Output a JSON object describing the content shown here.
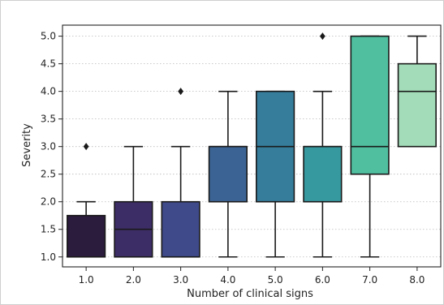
{
  "chart_data": {
    "type": "boxplot",
    "xlabel": "Number of clinical signs",
    "ylabel": "Severity",
    "categories": [
      "1.0",
      "2.0",
      "3.0",
      "4.0",
      "5.0",
      "6.0",
      "7.0",
      "8.0"
    ],
    "yticks": [
      "1.0",
      "1.5",
      "2.0",
      "2.5",
      "3.0",
      "3.5",
      "4.0",
      "4.5",
      "5.0"
    ],
    "ylim": [
      0.82,
      5.2
    ],
    "grid": "horizontal dotted",
    "boxes": [
      {
        "category": "1.0",
        "whisker_low": 1.0,
        "q1": 1.0,
        "median": 1.0,
        "q3": 1.75,
        "whisker_high": 2.0,
        "outliers": [
          3.0
        ],
        "color": "#2b1b3d"
      },
      {
        "category": "2.0",
        "whisker_low": 1.0,
        "q1": 1.0,
        "median": 1.5,
        "q3": 2.0,
        "whisker_high": 3.0,
        "outliers": [],
        "color": "#3d2d67"
      },
      {
        "category": "3.0",
        "whisker_low": 1.0,
        "q1": 1.0,
        "median": 1.0,
        "q3": 2.0,
        "whisker_high": 3.0,
        "outliers": [
          4.0
        ],
        "color": "#3e4a8a"
      },
      {
        "category": "4.0",
        "whisker_low": 1.0,
        "q1": 2.0,
        "median": 3.0,
        "q3": 3.0,
        "whisker_high": 4.0,
        "outliers": [],
        "color": "#3b6494"
      },
      {
        "category": "5.0",
        "whisker_low": 1.0,
        "q1": 2.0,
        "median": 3.0,
        "q3": 4.0,
        "whisker_high": 4.0,
        "outliers": [],
        "color": "#357d9b"
      },
      {
        "category": "6.0",
        "whisker_low": 1.0,
        "q1": 2.0,
        "median": 3.0,
        "q3": 3.0,
        "whisker_high": 4.0,
        "outliers": [
          5.0
        ],
        "color": "#36999f"
      },
      {
        "category": "7.0",
        "whisker_low": 1.0,
        "q1": 2.5,
        "median": 3.0,
        "q3": 5.0,
        "whisker_high": 5.0,
        "outliers": [],
        "color": "#4fbf9f"
      },
      {
        "category": "8.0",
        "whisker_low": 3.0,
        "q1": 3.0,
        "median": 4.0,
        "q3": 4.5,
        "whisker_high": 5.0,
        "outliers": [],
        "color": "#a3dcb8"
      }
    ]
  }
}
